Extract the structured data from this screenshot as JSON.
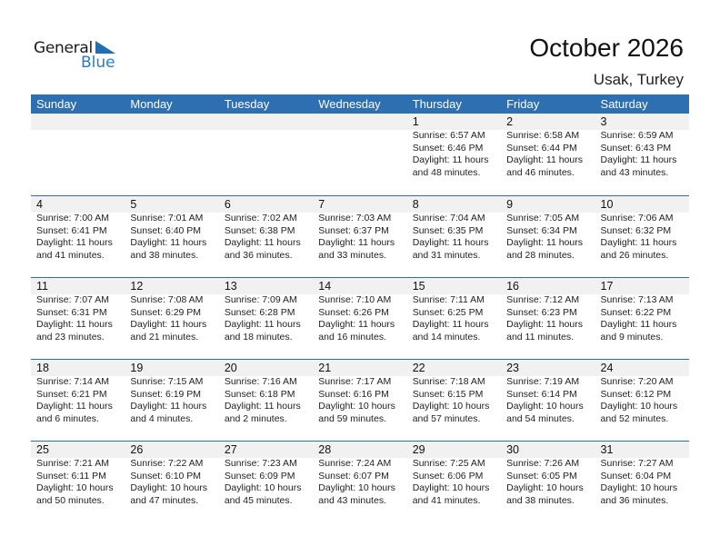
{
  "logo": {
    "line1": "General",
    "line2": "Blue",
    "accent": "#1f6fb8"
  },
  "header": {
    "title": "October 2026",
    "location": "Usak, Turkey"
  },
  "colors": {
    "header_bg": "#2e6fb1",
    "day_band": "#f1f1f1"
  },
  "weekdays": [
    "Sunday",
    "Monday",
    "Tuesday",
    "Wednesday",
    "Thursday",
    "Friday",
    "Saturday"
  ],
  "weeks": [
    [
      null,
      null,
      null,
      null,
      {
        "day": "1",
        "sunrise": "Sunrise: 6:57 AM",
        "sunset": "Sunset: 6:46 PM",
        "daylight": "Daylight: 11 hours",
        "minutes": "and 48 minutes."
      },
      {
        "day": "2",
        "sunrise": "Sunrise: 6:58 AM",
        "sunset": "Sunset: 6:44 PM",
        "daylight": "Daylight: 11 hours",
        "minutes": "and 46 minutes."
      },
      {
        "day": "3",
        "sunrise": "Sunrise: 6:59 AM",
        "sunset": "Sunset: 6:43 PM",
        "daylight": "Daylight: 11 hours",
        "minutes": "and 43 minutes."
      }
    ],
    [
      {
        "day": "4",
        "sunrise": "Sunrise: 7:00 AM",
        "sunset": "Sunset: 6:41 PM",
        "daylight": "Daylight: 11 hours",
        "minutes": "and 41 minutes."
      },
      {
        "day": "5",
        "sunrise": "Sunrise: 7:01 AM",
        "sunset": "Sunset: 6:40 PM",
        "daylight": "Daylight: 11 hours",
        "minutes": "and 38 minutes."
      },
      {
        "day": "6",
        "sunrise": "Sunrise: 7:02 AM",
        "sunset": "Sunset: 6:38 PM",
        "daylight": "Daylight: 11 hours",
        "minutes": "and 36 minutes."
      },
      {
        "day": "7",
        "sunrise": "Sunrise: 7:03 AM",
        "sunset": "Sunset: 6:37 PM",
        "daylight": "Daylight: 11 hours",
        "minutes": "and 33 minutes."
      },
      {
        "day": "8",
        "sunrise": "Sunrise: 7:04 AM",
        "sunset": "Sunset: 6:35 PM",
        "daylight": "Daylight: 11 hours",
        "minutes": "and 31 minutes."
      },
      {
        "day": "9",
        "sunrise": "Sunrise: 7:05 AM",
        "sunset": "Sunset: 6:34 PM",
        "daylight": "Daylight: 11 hours",
        "minutes": "and 28 minutes."
      },
      {
        "day": "10",
        "sunrise": "Sunrise: 7:06 AM",
        "sunset": "Sunset: 6:32 PM",
        "daylight": "Daylight: 11 hours",
        "minutes": "and 26 minutes."
      }
    ],
    [
      {
        "day": "11",
        "sunrise": "Sunrise: 7:07 AM",
        "sunset": "Sunset: 6:31 PM",
        "daylight": "Daylight: 11 hours",
        "minutes": "and 23 minutes."
      },
      {
        "day": "12",
        "sunrise": "Sunrise: 7:08 AM",
        "sunset": "Sunset: 6:29 PM",
        "daylight": "Daylight: 11 hours",
        "minutes": "and 21 minutes."
      },
      {
        "day": "13",
        "sunrise": "Sunrise: 7:09 AM",
        "sunset": "Sunset: 6:28 PM",
        "daylight": "Daylight: 11 hours",
        "minutes": "and 18 minutes."
      },
      {
        "day": "14",
        "sunrise": "Sunrise: 7:10 AM",
        "sunset": "Sunset: 6:26 PM",
        "daylight": "Daylight: 11 hours",
        "minutes": "and 16 minutes."
      },
      {
        "day": "15",
        "sunrise": "Sunrise: 7:11 AM",
        "sunset": "Sunset: 6:25 PM",
        "daylight": "Daylight: 11 hours",
        "minutes": "and 14 minutes."
      },
      {
        "day": "16",
        "sunrise": "Sunrise: 7:12 AM",
        "sunset": "Sunset: 6:23 PM",
        "daylight": "Daylight: 11 hours",
        "minutes": "and 11 minutes."
      },
      {
        "day": "17",
        "sunrise": "Sunrise: 7:13 AM",
        "sunset": "Sunset: 6:22 PM",
        "daylight": "Daylight: 11 hours",
        "minutes": "and 9 minutes."
      }
    ],
    [
      {
        "day": "18",
        "sunrise": "Sunrise: 7:14 AM",
        "sunset": "Sunset: 6:21 PM",
        "daylight": "Daylight: 11 hours",
        "minutes": "and 6 minutes."
      },
      {
        "day": "19",
        "sunrise": "Sunrise: 7:15 AM",
        "sunset": "Sunset: 6:19 PM",
        "daylight": "Daylight: 11 hours",
        "minutes": "and 4 minutes."
      },
      {
        "day": "20",
        "sunrise": "Sunrise: 7:16 AM",
        "sunset": "Sunset: 6:18 PM",
        "daylight": "Daylight: 11 hours",
        "minutes": "and 2 minutes."
      },
      {
        "day": "21",
        "sunrise": "Sunrise: 7:17 AM",
        "sunset": "Sunset: 6:16 PM",
        "daylight": "Daylight: 10 hours",
        "minutes": "and 59 minutes."
      },
      {
        "day": "22",
        "sunrise": "Sunrise: 7:18 AM",
        "sunset": "Sunset: 6:15 PM",
        "daylight": "Daylight: 10 hours",
        "minutes": "and 57 minutes."
      },
      {
        "day": "23",
        "sunrise": "Sunrise: 7:19 AM",
        "sunset": "Sunset: 6:14 PM",
        "daylight": "Daylight: 10 hours",
        "minutes": "and 54 minutes."
      },
      {
        "day": "24",
        "sunrise": "Sunrise: 7:20 AM",
        "sunset": "Sunset: 6:12 PM",
        "daylight": "Daylight: 10 hours",
        "minutes": "and 52 minutes."
      }
    ],
    [
      {
        "day": "25",
        "sunrise": "Sunrise: 7:21 AM",
        "sunset": "Sunset: 6:11 PM",
        "daylight": "Daylight: 10 hours",
        "minutes": "and 50 minutes."
      },
      {
        "day": "26",
        "sunrise": "Sunrise: 7:22 AM",
        "sunset": "Sunset: 6:10 PM",
        "daylight": "Daylight: 10 hours",
        "minutes": "and 47 minutes."
      },
      {
        "day": "27",
        "sunrise": "Sunrise: 7:23 AM",
        "sunset": "Sunset: 6:09 PM",
        "daylight": "Daylight: 10 hours",
        "minutes": "and 45 minutes."
      },
      {
        "day": "28",
        "sunrise": "Sunrise: 7:24 AM",
        "sunset": "Sunset: 6:07 PM",
        "daylight": "Daylight: 10 hours",
        "minutes": "and 43 minutes."
      },
      {
        "day": "29",
        "sunrise": "Sunrise: 7:25 AM",
        "sunset": "Sunset: 6:06 PM",
        "daylight": "Daylight: 10 hours",
        "minutes": "and 41 minutes."
      },
      {
        "day": "30",
        "sunrise": "Sunrise: 7:26 AM",
        "sunset": "Sunset: 6:05 PM",
        "daylight": "Daylight: 10 hours",
        "minutes": "and 38 minutes."
      },
      {
        "day": "31",
        "sunrise": "Sunrise: 7:27 AM",
        "sunset": "Sunset: 6:04 PM",
        "daylight": "Daylight: 10 hours",
        "minutes": "and 36 minutes."
      }
    ]
  ]
}
